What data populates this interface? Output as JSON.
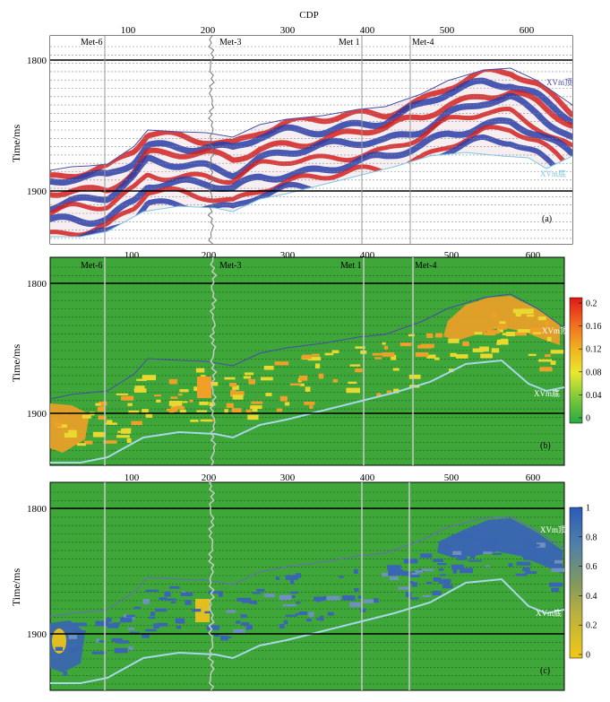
{
  "figure": {
    "cdp_label": "CDP",
    "y_label": "Time/ms",
    "cdp_ticks": [
      "100",
      "200",
      "300",
      "400",
      "500",
      "600"
    ],
    "time_ticks": [
      "1800",
      "1900"
    ],
    "wells": [
      "Met-6",
      "Met-3",
      "Met 1",
      "Met-4"
    ],
    "horizon_top": "XVm顶",
    "horizon_bottom": "XVm底",
    "panels": [
      {
        "label": "(a)",
        "content": "seismic section"
      },
      {
        "label": "(b)",
        "colorbar_ticks": [
          "0.2",
          "0.16",
          "0.12",
          "0.08",
          "0.04",
          "0"
        ]
      },
      {
        "label": "(c)",
        "colorbar_ticks": [
          "1",
          "0.8",
          "0.6",
          "0.4",
          "0.2",
          "0"
        ]
      }
    ]
  },
  "chart_data": [
    {
      "type": "heatmap",
      "panel": "(a)",
      "xlabel": "CDP",
      "ylabel": "Time/ms",
      "xlim": [
        20,
        640
      ],
      "ylim": [
        1760,
        1935
      ],
      "x_ticks": [
        100,
        200,
        300,
        400,
        500,
        600
      ],
      "y_ticks": [
        1800,
        1900
      ],
      "wells": [
        {
          "name": "Met-6",
          "cdp": 90
        },
        {
          "name": "Met-3",
          "cdp": 208
        },
        {
          "name": "Met 1",
          "cdp": 395
        },
        {
          "name": "Met-4",
          "cdp": 455
        }
      ],
      "horizons": [
        {
          "name": "XVm顶",
          "color": "#4a4aa8",
          "cdp": [
            20,
            60,
            100,
            150,
            200,
            250,
            300,
            350,
            400,
            450,
            500,
            550,
            600,
            640
          ],
          "time": [
            1888,
            1885,
            1878,
            1856,
            1855,
            1860,
            1848,
            1840,
            1842,
            1838,
            1818,
            1812,
            1820,
            1845
          ]
        },
        {
          "name": "XVm底",
          "color": "#7ec8e0",
          "cdp": [
            20,
            60,
            100,
            150,
            200,
            250,
            300,
            350,
            400,
            450,
            500,
            550,
            600,
            640
          ],
          "time": [
            1935,
            1930,
            1925,
            1915,
            1905,
            1915,
            1905,
            1895,
            1890,
            1880,
            1872,
            1870,
            1885,
            1885
          ]
        }
      ]
    },
    {
      "type": "heatmap",
      "panel": "(b)",
      "ylabel": "Time/ms",
      "xlim": [
        20,
        640
      ],
      "ylim": [
        1760,
        1935
      ],
      "colorbar": {
        "min": 0,
        "max": 0.2,
        "ticks": [
          0,
          0.04,
          0.08,
          0.12,
          0.16,
          0.2
        ],
        "colors": [
          "#2aa843",
          "#e8e830",
          "#f0a020",
          "#e02020"
        ]
      },
      "background": "#3fa63a"
    },
    {
      "type": "heatmap",
      "panel": "(c)",
      "ylabel": "Time/ms",
      "xlim": [
        20,
        640
      ],
      "ylim": [
        1760,
        1935
      ],
      "colorbar": {
        "min": 0,
        "max": 1,
        "ticks": [
          0,
          0.2,
          0.4,
          0.6,
          0.8,
          1
        ],
        "colors": [
          "#e8c020",
          "#8aa840",
          "#3a6ab8"
        ]
      },
      "background": "#3fa63a"
    }
  ]
}
